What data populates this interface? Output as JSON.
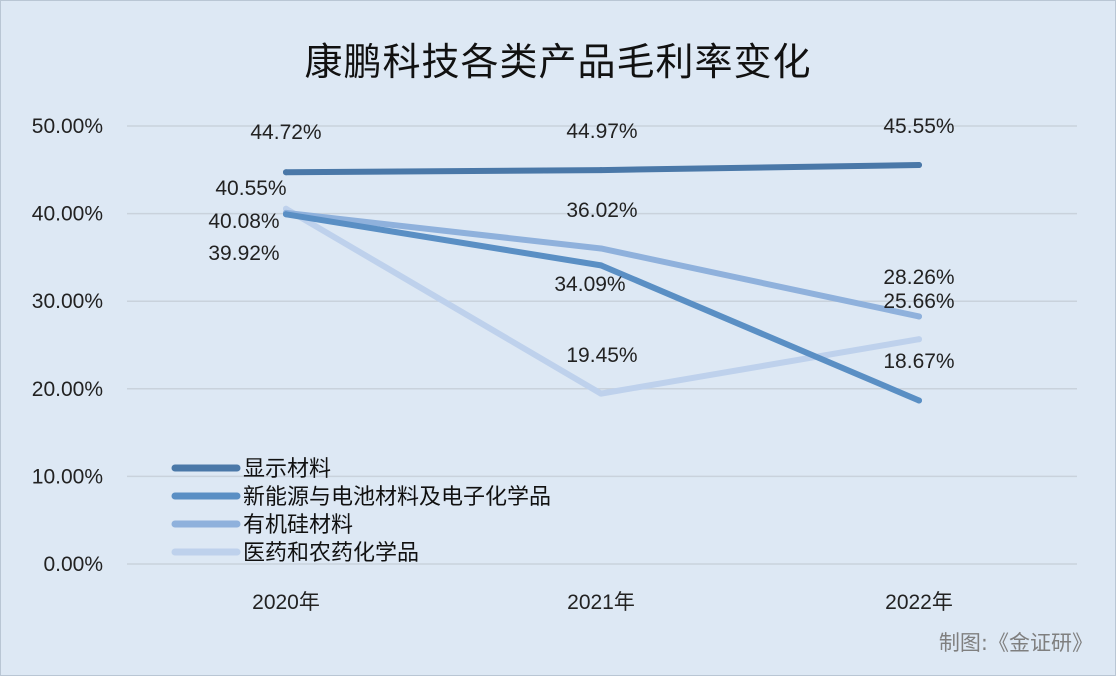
{
  "chart_data": {
    "type": "line",
    "title": "康鹏科技各类产品毛利率变化",
    "categories": [
      "2020年",
      "2021年",
      "2022年"
    ],
    "yticks": [
      "0.00%",
      "10.00%",
      "20.00%",
      "30.00%",
      "40.00%",
      "50.00%"
    ],
    "ylim": [
      0,
      50
    ],
    "grid": true,
    "legend_position": "bottom-left",
    "series": [
      {
        "name": "显示材料",
        "values": [
          44.72,
          44.97,
          45.55
        ],
        "labels": [
          "44.72%",
          "44.97%",
          "45.55%"
        ],
        "color": "#4a78a8"
      },
      {
        "name": "新能源与电池材料及电子化学品",
        "values": [
          39.92,
          34.09,
          18.67
        ],
        "labels": [
          "39.92%",
          "34.09%",
          "18.67%"
        ],
        "color": "#5a8fc4"
      },
      {
        "name": "有机硅材料",
        "values": [
          40.08,
          36.02,
          28.26
        ],
        "labels": [
          "40.08%",
          "36.02%",
          "28.26%"
        ],
        "color": "#8fb1dc"
      },
      {
        "name": "医药和农药化学品",
        "values": [
          40.55,
          19.45,
          25.66
        ],
        "labels": [
          "40.55%",
          "19.45%",
          "25.66%"
        ],
        "color": "#bed1ec"
      }
    ]
  },
  "footer": {
    "source": "制图:《金证研》"
  }
}
